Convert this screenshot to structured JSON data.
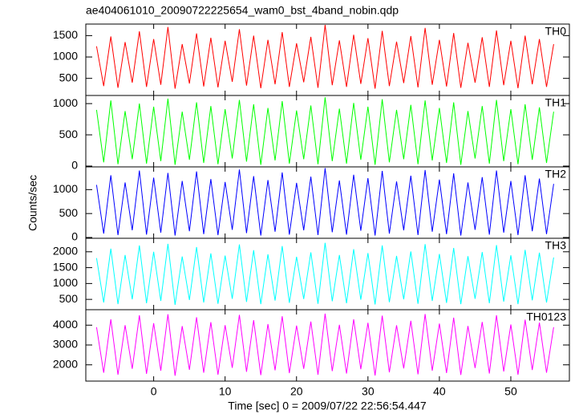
{
  "chart_data": {
    "type": "line",
    "title": "ae404061010_20090722225654_wam0_bst_4band_nobin.qdp",
    "xlabel": "Time [sec] 0 = 2009/07/22 22:56:54.447",
    "ylabel": "Counts/sec",
    "x": [
      -8,
      -7,
      -6,
      -5,
      -4,
      -3,
      -2,
      -1,
      0,
      1,
      2,
      3,
      4,
      5,
      6,
      7,
      8,
      9,
      10,
      11,
      12,
      13,
      14,
      15,
      16,
      17,
      18,
      19,
      20,
      21,
      22,
      23,
      24,
      25,
      26,
      27,
      28,
      29,
      30,
      31,
      32,
      33,
      34,
      35,
      36,
      37,
      38,
      39,
      40,
      41,
      42,
      43,
      44,
      45,
      46,
      47,
      48,
      49,
      50,
      51,
      52,
      53,
      54,
      55,
      56
    ],
    "xlim": [
      -9.5,
      58.2
    ],
    "xticks": [
      0,
      10,
      20,
      30,
      40,
      50
    ],
    "series": [
      {
        "name": "TH0",
        "color": "#ff0000",
        "ylim": [
          100,
          1770
        ],
        "yticks": [
          500,
          1000,
          1500
        ],
        "values": [
          1250,
          320,
          1480,
          280,
          1350,
          400,
          1600,
          300,
          1420,
          350,
          1700,
          260,
          1300,
          380,
          1550,
          310,
          1450,
          290,
          1380,
          420,
          1650,
          330,
          1500,
          270,
          1400,
          360,
          1580,
          300,
          1320,
          410,
          1470,
          280,
          1750,
          340,
          1390,
          300,
          1520,
          370,
          1440,
          260,
          1610,
          320,
          1360,
          390,
          1490,
          290,
          1680,
          350,
          1400,
          310,
          1560,
          280,
          1330,
          400,
          1460,
          300,
          1620,
          340,
          1380,
          270,
          1500,
          360,
          1420,
          300,
          1300
        ]
      },
      {
        "name": "TH1",
        "color": "#00ff00",
        "ylim": [
          -13,
          1130
        ],
        "yticks": [
          0,
          500,
          1000
        ],
        "values": [
          900,
          60,
          1050,
          30,
          880,
          110,
          1000,
          40,
          950,
          80,
          1080,
          20,
          870,
          100,
          1020,
          50,
          960,
          30,
          910,
          120,
          1060,
          70,
          990,
          20,
          930,
          90,
          1040,
          40,
          890,
          110,
          970,
          30,
          1100,
          80,
          920,
          40,
          1010,
          100,
          950,
          20,
          1070,
          60,
          900,
          110,
          980,
          30,
          1050,
          90,
          930,
          50,
          1020,
          20,
          880,
          120,
          960,
          40,
          1060,
          80,
          910,
          30,
          990,
          100,
          940,
          50,
          870
        ]
      },
      {
        "name": "TH2",
        "color": "#0000ff",
        "ylim": [
          -17,
          1475
        ],
        "yticks": [
          0,
          500,
          1000
        ],
        "values": [
          1100,
          80,
          1300,
          50,
          1150,
          150,
          1400,
          60,
          1250,
          100,
          1350,
          40,
          1180,
          130,
          1380,
          70,
          1220,
          50,
          1160,
          160,
          1420,
          90,
          1280,
          40,
          1200,
          120,
          1360,
          60,
          1140,
          150,
          1270,
          50,
          1450,
          110,
          1190,
          60,
          1310,
          140,
          1240,
          40,
          1390,
          80,
          1170,
          150,
          1290,
          50,
          1410,
          120,
          1210,
          70,
          1340,
          40,
          1150,
          160,
          1260,
          60,
          1400,
          100,
          1180,
          50,
          1300,
          130,
          1230,
          70,
          1120
        ]
      },
      {
        "name": "TH3",
        "color": "#00ffff",
        "ylim": [
          175,
          2425
        ],
        "yticks": [
          500,
          1000,
          1500,
          2000
        ],
        "values": [
          1800,
          400,
          2100,
          350,
          1900,
          500,
          2200,
          380,
          2000,
          450,
          2250,
          330,
          1850,
          480,
          2150,
          400,
          1950,
          360,
          1880,
          520,
          2230,
          420,
          2050,
          350,
          1920,
          460,
          2180,
          390,
          1840,
          510,
          1980,
          360,
          2280,
          440,
          1900,
          380,
          2080,
          490,
          1960,
          340,
          2200,
          410,
          1870,
          500,
          2010,
          360,
          2240,
          450,
          1930,
          390,
          2120,
          350,
          1860,
          520,
          1990,
          380,
          2210,
          430,
          1890,
          350,
          2060,
          470,
          1970,
          400,
          1820
        ]
      },
      {
        "name": "TH0123",
        "color": "#ff00ff",
        "ylim": [
          1180,
          4780
        ],
        "yticks": [
          2000,
          3000,
          4000
        ],
        "values": [
          3900,
          1600,
          4300,
          1500,
          4000,
          1800,
          4500,
          1550,
          4100,
          1700,
          4550,
          1450,
          3950,
          1750,
          4400,
          1600,
          4150,
          1500,
          4000,
          1850,
          4520,
          1650,
          4250,
          1480,
          4050,
          1720,
          4450,
          1580,
          3980,
          1800,
          4180,
          1500,
          4580,
          1680,
          4020,
          1560,
          4300,
          1780,
          4120,
          1460,
          4480,
          1620,
          3990,
          1820,
          4220,
          1520,
          4560,
          1700,
          4080,
          1590,
          4380,
          1490,
          3960,
          1840,
          4160,
          1560,
          4500,
          1660,
          4030,
          1500,
          4280,
          1740,
          4130,
          1600,
          3900
        ]
      }
    ]
  }
}
